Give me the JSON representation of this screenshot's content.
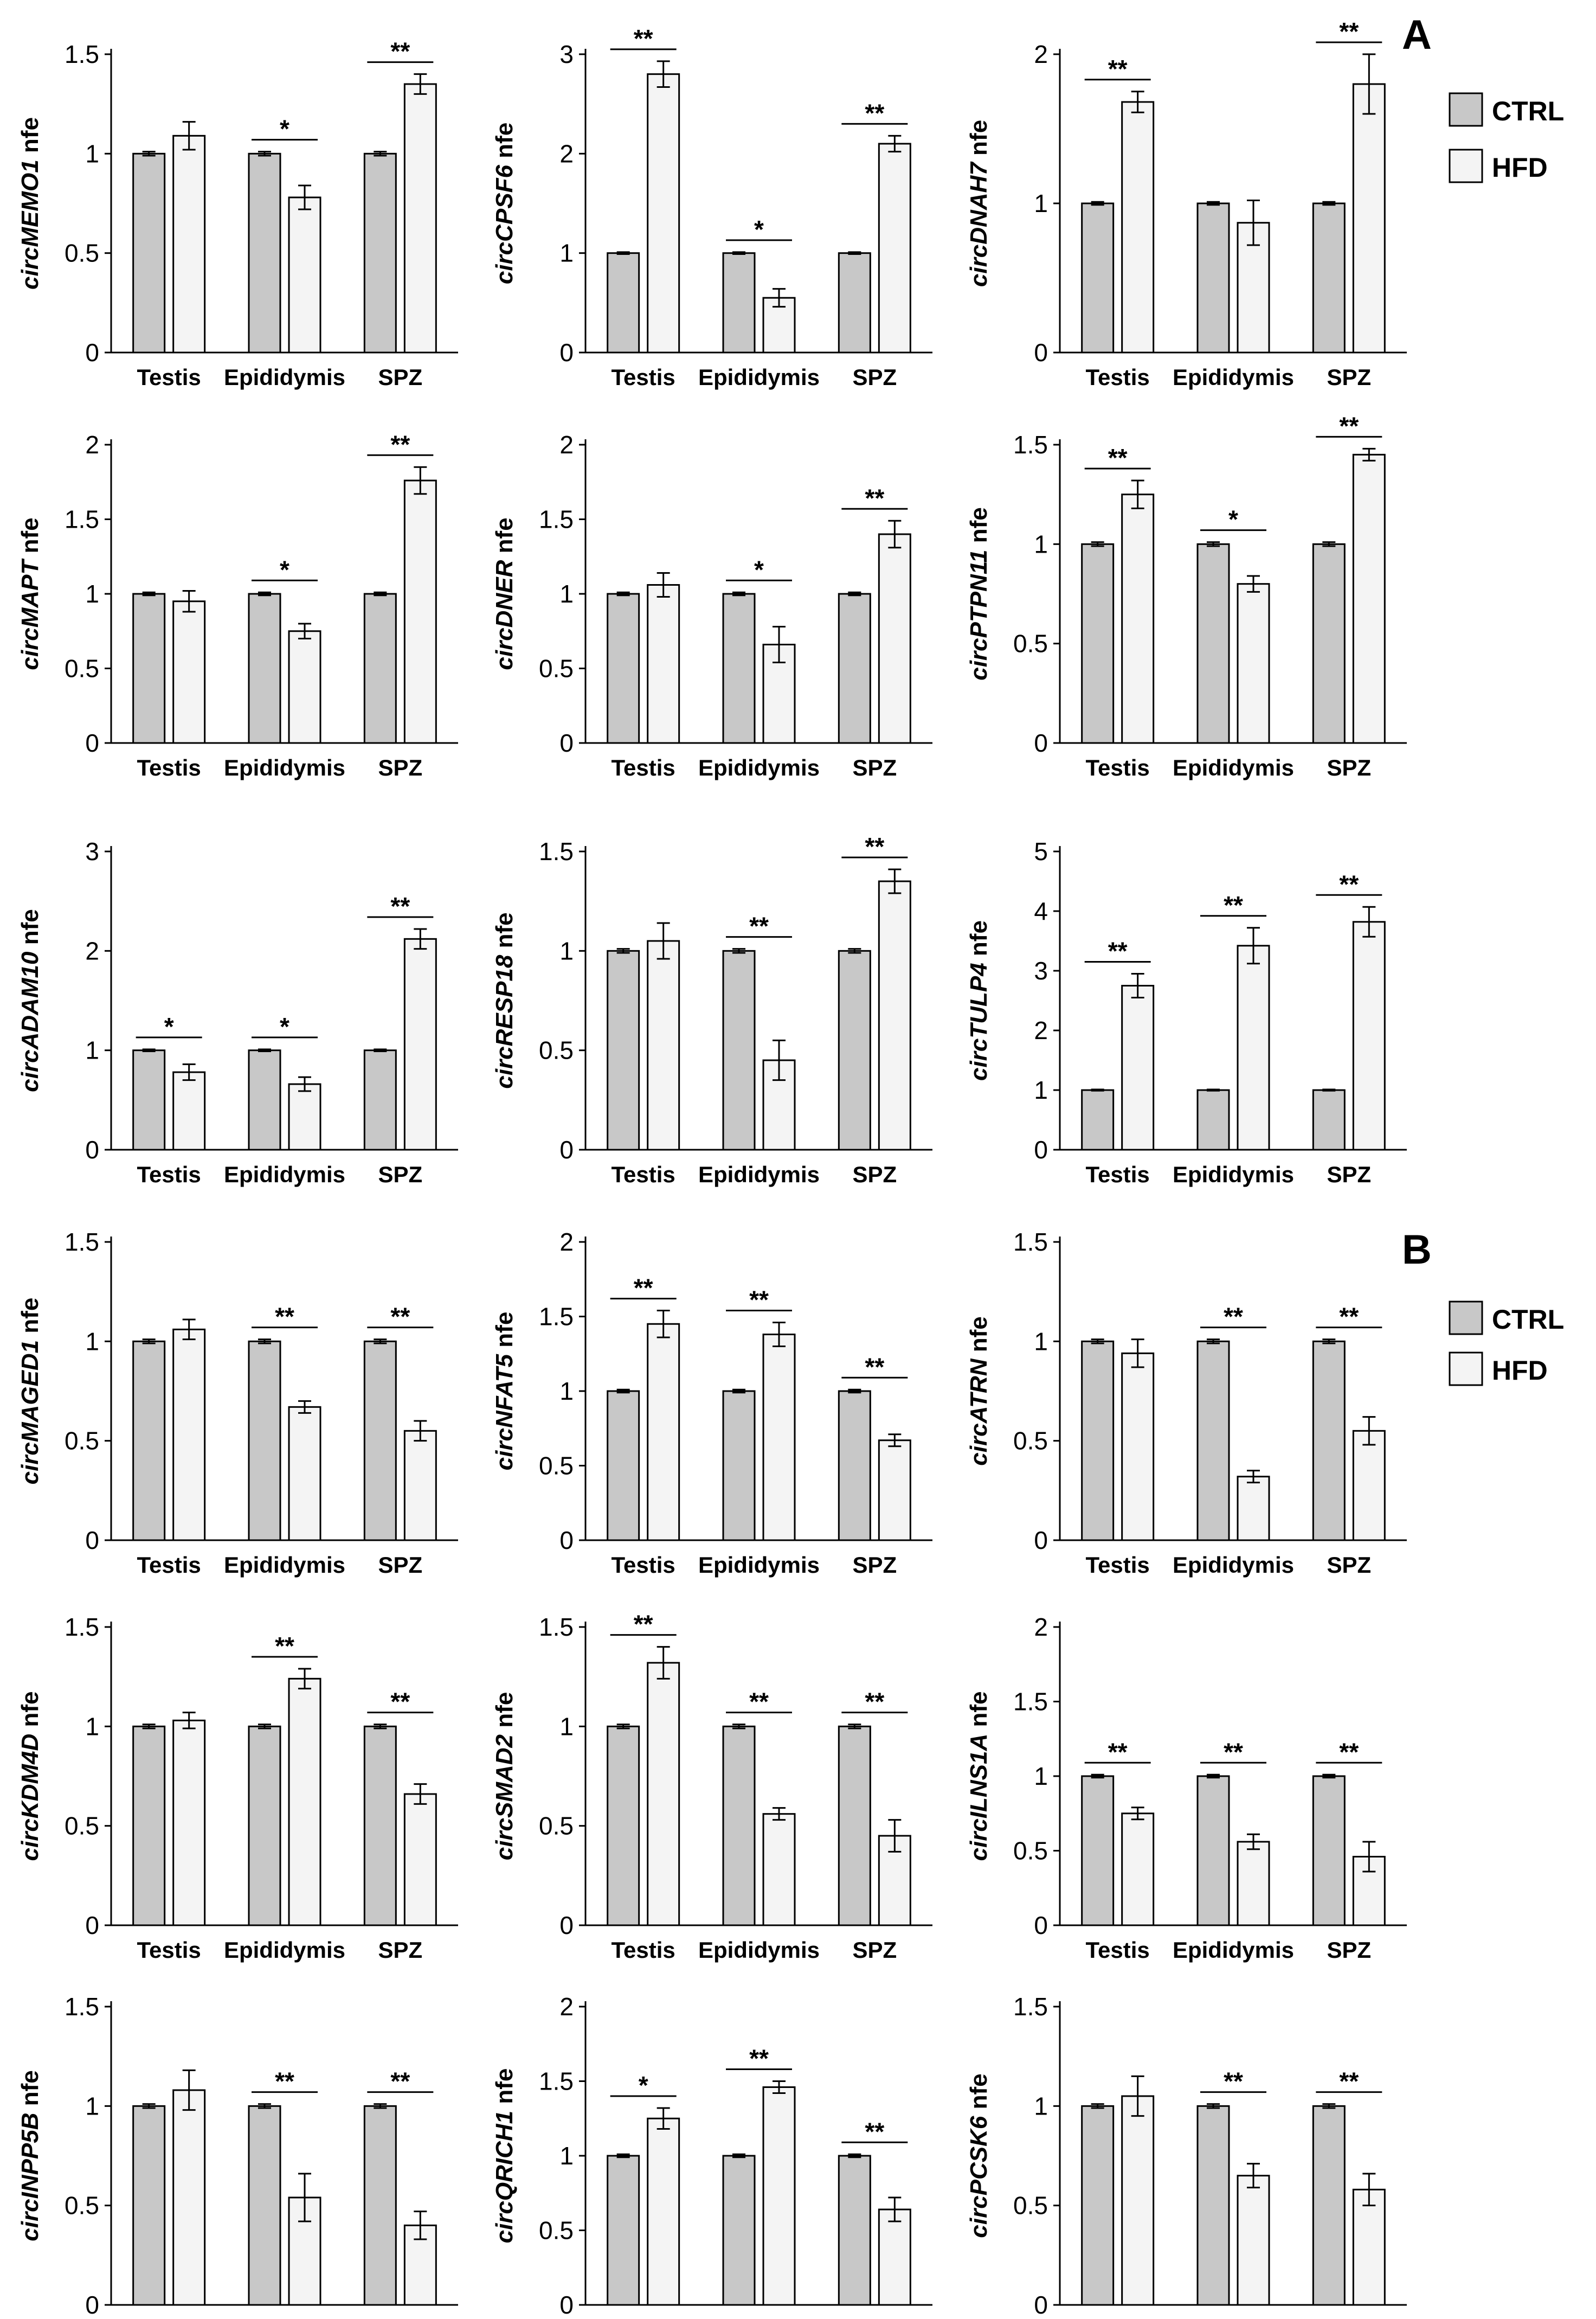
{
  "legend": {
    "ctrl_label": "CTRL",
    "hfd_label": "HFD",
    "ctrl_color": "#c8c8c8",
    "hfd_color": "#f4f4f4"
  },
  "panels": [
    {
      "letter": "A"
    },
    {
      "letter": "B"
    }
  ],
  "chart_data": [
    {
      "type": "bar",
      "ylabel_gene": "circMEMO1",
      "ylabel_suffix": "nfe",
      "categories": [
        "Testis",
        "Epididymis",
        "SPZ"
      ],
      "ylim": [
        0,
        1.5
      ],
      "yticks": [
        "0",
        "0.5",
        "1",
        "1.5"
      ],
      "series": [
        {
          "name": "CTRL",
          "values": [
            1,
            1,
            1
          ],
          "errors": [
            0.01,
            0.01,
            0.01
          ]
        },
        {
          "name": "HFD",
          "values": [
            1.09,
            0.78,
            1.35
          ],
          "errors": [
            0.07,
            0.06,
            0.05
          ]
        }
      ],
      "significance": [
        "",
        "*",
        "**"
      ]
    },
    {
      "type": "bar",
      "ylabel_gene": "circCPSF6",
      "ylabel_suffix": "nfe",
      "categories": [
        "Testis",
        "Epididymis",
        "SPZ"
      ],
      "ylim": [
        0,
        3
      ],
      "yticks": [
        "0",
        "1",
        "2",
        "3"
      ],
      "series": [
        {
          "name": "CTRL",
          "values": [
            1,
            1,
            1
          ],
          "errors": [
            0.01,
            0.01,
            0.01
          ]
        },
        {
          "name": "HFD",
          "values": [
            2.8,
            0.55,
            2.1
          ],
          "errors": [
            0.13,
            0.09,
            0.08
          ]
        }
      ],
      "significance": [
        "**",
        "*",
        "**"
      ]
    },
    {
      "type": "bar",
      "ylabel_gene": "circDNAH7",
      "ylabel_suffix": "nfe",
      "categories": [
        "Testis",
        "Epididymis",
        "SPZ"
      ],
      "ylim": [
        0,
        2
      ],
      "yticks": [
        "0",
        "1",
        "2"
      ],
      "series": [
        {
          "name": "CTRL",
          "values": [
            1,
            1,
            1
          ],
          "errors": [
            0.01,
            0.01,
            0.01
          ]
        },
        {
          "name": "HFD",
          "values": [
            1.68,
            0.87,
            1.8
          ],
          "errors": [
            0.07,
            0.15,
            0.2
          ]
        }
      ],
      "significance": [
        "**",
        "",
        "**"
      ]
    },
    {
      "type": "bar",
      "ylabel_gene": "circMAPT",
      "ylabel_suffix": "nfe",
      "categories": [
        "Testis",
        "Epididymis",
        "SPZ"
      ],
      "ylim": [
        0,
        2
      ],
      "yticks": [
        "0",
        "0.5",
        "1",
        "1.5",
        "2"
      ],
      "series": [
        {
          "name": "CTRL",
          "values": [
            1,
            1,
            1
          ],
          "errors": [
            0.01,
            0.01,
            0.01
          ]
        },
        {
          "name": "HFD",
          "values": [
            0.95,
            0.75,
            1.76
          ],
          "errors": [
            0.07,
            0.05,
            0.09
          ]
        }
      ],
      "significance": [
        "",
        "*",
        "**"
      ]
    },
    {
      "type": "bar",
      "ylabel_gene": "circDNER",
      "ylabel_suffix": "nfe",
      "categories": [
        "Testis",
        "Epididymis",
        "SPZ"
      ],
      "ylim": [
        0,
        2
      ],
      "yticks": [
        "0",
        "0.5",
        "1",
        "1.5",
        "2"
      ],
      "series": [
        {
          "name": "CTRL",
          "values": [
            1,
            1,
            1
          ],
          "errors": [
            0.01,
            0.01,
            0.01
          ]
        },
        {
          "name": "HFD",
          "values": [
            1.06,
            0.66,
            1.4
          ],
          "errors": [
            0.08,
            0.12,
            0.09
          ]
        }
      ],
      "significance": [
        "",
        "*",
        "**"
      ]
    },
    {
      "type": "bar",
      "ylabel_gene": "circPTPN11",
      "ylabel_suffix": "nfe",
      "categories": [
        "Testis",
        "Epididymis",
        "SPZ"
      ],
      "ylim": [
        0,
        1.5
      ],
      "yticks": [
        "0",
        "0.5",
        "1",
        "1.5"
      ],
      "series": [
        {
          "name": "CTRL",
          "values": [
            1,
            1,
            1
          ],
          "errors": [
            0.01,
            0.01,
            0.01
          ]
        },
        {
          "name": "HFD",
          "values": [
            1.25,
            0.8,
            1.45
          ],
          "errors": [
            0.07,
            0.04,
            0.03
          ]
        }
      ],
      "significance": [
        "**",
        "*",
        "**"
      ]
    },
    {
      "type": "bar",
      "ylabel_gene": "circADAM10",
      "ylabel_suffix": "nfe",
      "categories": [
        "Testis",
        "Epididymis",
        "SPZ"
      ],
      "ylim": [
        0,
        3
      ],
      "yticks": [
        "0",
        "1",
        "2",
        "3"
      ],
      "series": [
        {
          "name": "CTRL",
          "values": [
            1,
            1,
            1
          ],
          "errors": [
            0.01,
            0.01,
            0.01
          ]
        },
        {
          "name": "HFD",
          "values": [
            0.78,
            0.66,
            2.12
          ],
          "errors": [
            0.08,
            0.07,
            0.1
          ]
        }
      ],
      "significance": [
        "*",
        "*",
        "**"
      ]
    },
    {
      "type": "bar",
      "ylabel_gene": "circRESP18",
      "ylabel_suffix": "nfe",
      "categories": [
        "Testis",
        "Epididymis",
        "SPZ"
      ],
      "ylim": [
        0,
        1.5
      ],
      "yticks": [
        "0",
        "0.5",
        "1",
        "1.5"
      ],
      "series": [
        {
          "name": "CTRL",
          "values": [
            1,
            1,
            1
          ],
          "errors": [
            0.01,
            0.01,
            0.01
          ]
        },
        {
          "name": "HFD",
          "values": [
            1.05,
            0.45,
            1.35
          ],
          "errors": [
            0.09,
            0.1,
            0.06
          ]
        }
      ],
      "significance": [
        "",
        "**",
        "**"
      ]
    },
    {
      "type": "bar",
      "ylabel_gene": "circTULP4",
      "ylabel_suffix": "nfe",
      "categories": [
        "Testis",
        "Epididymis",
        "SPZ"
      ],
      "ylim": [
        0,
        5
      ],
      "yticks": [
        "0",
        "1",
        "2",
        "3",
        "4",
        "5"
      ],
      "series": [
        {
          "name": "CTRL",
          "values": [
            1,
            1,
            1
          ],
          "errors": [
            0.01,
            0.01,
            0.01
          ]
        },
        {
          "name": "HFD",
          "values": [
            2.75,
            3.42,
            3.82
          ],
          "errors": [
            0.2,
            0.3,
            0.25
          ]
        }
      ],
      "significance": [
        "**",
        "**",
        "**"
      ]
    },
    {
      "type": "bar",
      "ylabel_gene": "circMAGED1",
      "ylabel_suffix": "nfe",
      "categories": [
        "Testis",
        "Epididymis",
        "SPZ"
      ],
      "ylim": [
        0,
        1.5
      ],
      "yticks": [
        "0",
        "0.5",
        "1",
        "1.5"
      ],
      "series": [
        {
          "name": "CTRL",
          "values": [
            1,
            1,
            1
          ],
          "errors": [
            0.01,
            0.01,
            0.01
          ]
        },
        {
          "name": "HFD",
          "values": [
            1.06,
            0.67,
            0.55
          ],
          "errors": [
            0.05,
            0.03,
            0.05
          ]
        }
      ],
      "significance": [
        "",
        "**",
        "**"
      ]
    },
    {
      "type": "bar",
      "ylabel_gene": "circNFAT5",
      "ylabel_suffix": "nfe",
      "categories": [
        "Testis",
        "Epididymis",
        "SPZ"
      ],
      "ylim": [
        0,
        2
      ],
      "yticks": [
        "0",
        "0.5",
        "1",
        "1.5",
        "2"
      ],
      "series": [
        {
          "name": "CTRL",
          "values": [
            1,
            1,
            1
          ],
          "errors": [
            0.01,
            0.01,
            0.01
          ]
        },
        {
          "name": "HFD",
          "values": [
            1.45,
            1.38,
            0.67
          ],
          "errors": [
            0.09,
            0.08,
            0.04
          ]
        }
      ],
      "significance": [
        "**",
        "**",
        "**"
      ]
    },
    {
      "type": "bar",
      "ylabel_gene": "circATRN",
      "ylabel_suffix": "nfe",
      "categories": [
        "Testis",
        "Epididymis",
        "SPZ"
      ],
      "ylim": [
        0,
        1.5
      ],
      "yticks": [
        "0",
        "0.5",
        "1",
        "1.5"
      ],
      "series": [
        {
          "name": "CTRL",
          "values": [
            1,
            1,
            1
          ],
          "errors": [
            0.01,
            0.01,
            0.01
          ]
        },
        {
          "name": "HFD",
          "values": [
            0.94,
            0.32,
            0.55
          ],
          "errors": [
            0.07,
            0.03,
            0.07
          ]
        }
      ],
      "significance": [
        "",
        "**",
        "**"
      ]
    },
    {
      "type": "bar",
      "ylabel_gene": "circKDM4D",
      "ylabel_suffix": "nfe",
      "categories": [
        "Testis",
        "Epididymis",
        "SPZ"
      ],
      "ylim": [
        0,
        1.5
      ],
      "yticks": [
        "0",
        "0.5",
        "1",
        "1.5"
      ],
      "series": [
        {
          "name": "CTRL",
          "values": [
            1,
            1,
            1
          ],
          "errors": [
            0.01,
            0.01,
            0.01
          ]
        },
        {
          "name": "HFD",
          "values": [
            1.03,
            1.24,
            0.66
          ],
          "errors": [
            0.04,
            0.05,
            0.05
          ]
        }
      ],
      "significance": [
        "",
        "**",
        "**"
      ]
    },
    {
      "type": "bar",
      "ylabel_gene": "circSMAD2",
      "ylabel_suffix": "nfe",
      "categories": [
        "Testis",
        "Epididymis",
        "SPZ"
      ],
      "ylim": [
        0,
        1.5
      ],
      "yticks": [
        "0",
        "0.5",
        "1",
        "1.5"
      ],
      "series": [
        {
          "name": "CTRL",
          "values": [
            1,
            1,
            1
          ],
          "errors": [
            0.01,
            0.01,
            0.01
          ]
        },
        {
          "name": "HFD",
          "values": [
            1.32,
            0.56,
            0.45
          ],
          "errors": [
            0.08,
            0.03,
            0.08
          ]
        }
      ],
      "significance": [
        "**",
        "**",
        "**"
      ]
    },
    {
      "type": "bar",
      "ylabel_gene": "circILNS1A",
      "ylabel_suffix": "nfe",
      "categories": [
        "Testis",
        "Epididymis",
        "SPZ"
      ],
      "ylim": [
        0,
        2
      ],
      "yticks": [
        "0",
        "0.5",
        "1",
        "1.5",
        "2"
      ],
      "series": [
        {
          "name": "CTRL",
          "values": [
            1,
            1,
            1
          ],
          "errors": [
            0.01,
            0.01,
            0.01
          ]
        },
        {
          "name": "HFD",
          "values": [
            0.75,
            0.56,
            0.46
          ],
          "errors": [
            0.04,
            0.05,
            0.1
          ]
        }
      ],
      "significance": [
        "**",
        "**",
        "**"
      ]
    },
    {
      "type": "bar",
      "ylabel_gene": "circINPP5B",
      "ylabel_suffix": "nfe",
      "categories": [
        "Testis",
        "Epididymis",
        "SPZ"
      ],
      "ylim": [
        0,
        1.5
      ],
      "yticks": [
        "0",
        "0.5",
        "1",
        "1.5"
      ],
      "series": [
        {
          "name": "CTRL",
          "values": [
            1,
            1,
            1
          ],
          "errors": [
            0.01,
            0.01,
            0.01
          ]
        },
        {
          "name": "HFD",
          "values": [
            1.08,
            0.54,
            0.4
          ],
          "errors": [
            0.1,
            0.12,
            0.07
          ]
        }
      ],
      "significance": [
        "",
        "**",
        "**"
      ]
    },
    {
      "type": "bar",
      "ylabel_gene": "circQRICH1",
      "ylabel_suffix": "nfe",
      "categories": [
        "Testis",
        "Epididymis",
        "SPZ"
      ],
      "ylim": [
        0,
        2
      ],
      "yticks": [
        "0",
        "0.5",
        "1",
        "1.5",
        "2"
      ],
      "series": [
        {
          "name": "CTRL",
          "values": [
            1,
            1,
            1
          ],
          "errors": [
            0.01,
            0.01,
            0.01
          ]
        },
        {
          "name": "HFD",
          "values": [
            1.25,
            1.46,
            0.64
          ],
          "errors": [
            0.07,
            0.04,
            0.08
          ]
        }
      ],
      "significance": [
        "*",
        "**",
        "**"
      ]
    },
    {
      "type": "bar",
      "ylabel_gene": "circPCSK6",
      "ylabel_suffix": "nfe",
      "categories": [
        "Testis",
        "Epididymis",
        "SPZ"
      ],
      "ylim": [
        0,
        1.5
      ],
      "yticks": [
        "0",
        "0.5",
        "1",
        "1.5"
      ],
      "series": [
        {
          "name": "CTRL",
          "values": [
            1,
            1,
            1
          ],
          "errors": [
            0.01,
            0.01,
            0.01
          ]
        },
        {
          "name": "HFD",
          "values": [
            1.05,
            0.65,
            0.58
          ],
          "errors": [
            0.1,
            0.06,
            0.08
          ]
        }
      ],
      "significance": [
        "",
        "**",
        "**"
      ]
    }
  ]
}
